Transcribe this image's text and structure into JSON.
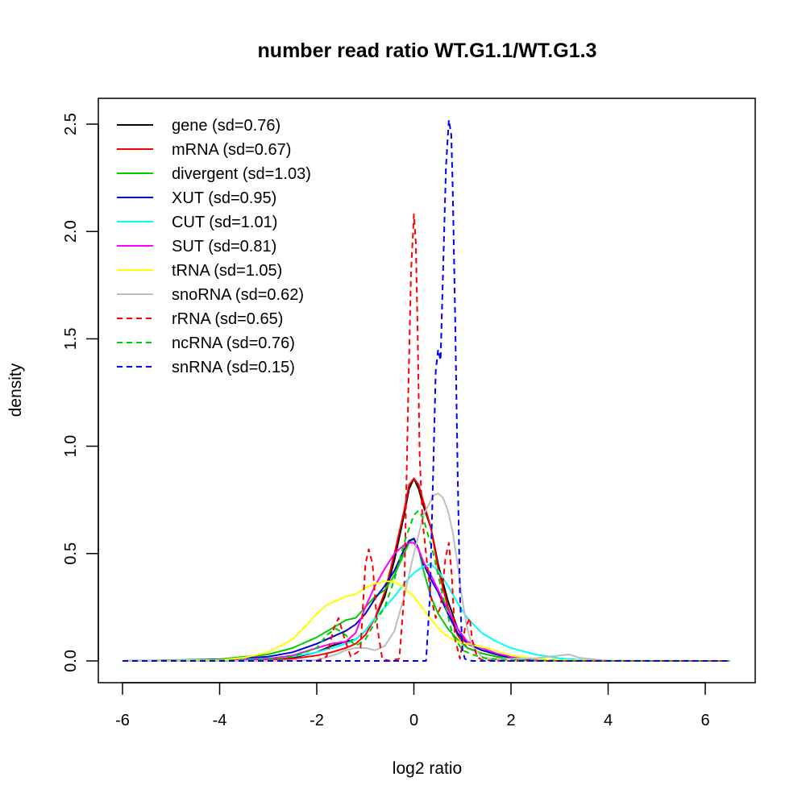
{
  "chart_data": {
    "type": "line",
    "title": "number read ratio WT.G1.1/WT.G1.3",
    "xlabel": "log2 ratio",
    "ylabel": "density",
    "xlim": [
      -6.5,
      7.0
    ],
    "ylim": [
      -0.1,
      2.6
    ],
    "xticks": [
      -6,
      -4,
      -2,
      0,
      2,
      4,
      6
    ],
    "xtick_labels": [
      "-6",
      "-4",
      "-2",
      "0",
      "2",
      "4",
      "6"
    ],
    "yticks": [
      0.0,
      0.5,
      1.0,
      1.5,
      2.0,
      2.5
    ],
    "ytick_labels": [
      "0.0",
      "0.5",
      "1.0",
      "1.5",
      "2.0",
      "2.5"
    ],
    "grid": false,
    "legend_position": "top-left",
    "series": [
      {
        "name": "gene (sd=0.76)",
        "color": "#000000",
        "dash": false,
        "x": [
          -6,
          -4,
          -3,
          -2.5,
          -2,
          -1.7,
          -1.4,
          -1.2,
          -1.0,
          -0.8,
          -0.6,
          -0.4,
          -0.2,
          -0.1,
          0,
          0.1,
          0.2,
          0.35,
          0.5,
          0.7,
          0.9,
          1.1,
          1.4,
          1.7,
          2,
          2.5,
          3,
          4,
          6.5
        ],
        "y": [
          0,
          0.002,
          0.005,
          0.015,
          0.04,
          0.07,
          0.09,
          0.1,
          0.14,
          0.2,
          0.3,
          0.47,
          0.68,
          0.8,
          0.85,
          0.8,
          0.72,
          0.62,
          0.45,
          0.28,
          0.15,
          0.08,
          0.05,
          0.03,
          0.015,
          0.006,
          0.002,
          0,
          0
        ]
      },
      {
        "name": "mRNA (sd=0.67)",
        "color": "#ff0000",
        "dash": false,
        "x": [
          -6,
          -4,
          -3,
          -2.5,
          -2,
          -1.7,
          -1.4,
          -1.2,
          -1.0,
          -0.8,
          -0.6,
          -0.4,
          -0.2,
          -0.1,
          0,
          0.1,
          0.2,
          0.35,
          0.5,
          0.7,
          0.9,
          1.1,
          1.4,
          1.7,
          2,
          2.5,
          3,
          4,
          6.5
        ],
        "y": [
          0,
          0.001,
          0.004,
          0.01,
          0.025,
          0.04,
          0.06,
          0.08,
          0.12,
          0.2,
          0.32,
          0.5,
          0.7,
          0.82,
          0.85,
          0.82,
          0.74,
          0.62,
          0.43,
          0.25,
          0.12,
          0.06,
          0.035,
          0.02,
          0.01,
          0.004,
          0.001,
          0,
          0
        ]
      },
      {
        "name": "divergent (sd=1.03)",
        "color": "#00cc00",
        "dash": false,
        "x": [
          -6,
          -4,
          -3,
          -2.5,
          -2,
          -1.7,
          -1.4,
          -1.2,
          -1.0,
          -0.8,
          -0.6,
          -0.4,
          -0.2,
          -0.1,
          0,
          0.1,
          0.2,
          0.35,
          0.5,
          0.7,
          0.9,
          1.1,
          1.4,
          1.7,
          2,
          2.5,
          3,
          4,
          6.5
        ],
        "y": [
          0,
          0.008,
          0.03,
          0.06,
          0.11,
          0.15,
          0.19,
          0.2,
          0.25,
          0.3,
          0.33,
          0.4,
          0.5,
          0.55,
          0.57,
          0.52,
          0.42,
          0.3,
          0.22,
          0.15,
          0.1,
          0.06,
          0.035,
          0.02,
          0.01,
          0.004,
          0.002,
          0,
          0
        ]
      },
      {
        "name": "XUT (sd=0.95)",
        "color": "#0000cc",
        "dash": false,
        "x": [
          -6,
          -4,
          -3,
          -2.5,
          -2,
          -1.7,
          -1.4,
          -1.2,
          -1.0,
          -0.8,
          -0.6,
          -0.4,
          -0.2,
          -0.1,
          0,
          0.1,
          0.2,
          0.35,
          0.5,
          0.7,
          0.9,
          1.1,
          1.4,
          1.7,
          2,
          2.5,
          3,
          4,
          6.5
        ],
        "y": [
          0,
          0.006,
          0.02,
          0.04,
          0.08,
          0.11,
          0.14,
          0.17,
          0.22,
          0.29,
          0.35,
          0.42,
          0.52,
          0.56,
          0.57,
          0.52,
          0.45,
          0.38,
          0.32,
          0.22,
          0.13,
          0.08,
          0.05,
          0.03,
          0.015,
          0.006,
          0.002,
          0,
          0
        ]
      },
      {
        "name": "CUT (sd=1.01)",
        "color": "#00ffff",
        "dash": false,
        "x": [
          -6,
          -4,
          -3,
          -2.5,
          -2,
          -1.7,
          -1.4,
          -1.2,
          -1.0,
          -0.8,
          -0.6,
          -0.4,
          -0.2,
          0,
          0.2,
          0.35,
          0.5,
          0.7,
          0.9,
          1.1,
          1.4,
          1.7,
          2,
          2.5,
          3,
          3.5,
          4,
          6.5
        ],
        "y": [
          0,
          0.004,
          0.012,
          0.02,
          0.04,
          0.06,
          0.08,
          0.1,
          0.14,
          0.2,
          0.25,
          0.3,
          0.36,
          0.41,
          0.44,
          0.45,
          0.42,
          0.35,
          0.27,
          0.2,
          0.13,
          0.09,
          0.06,
          0.03,
          0.012,
          0.004,
          0.001,
          0
        ]
      },
      {
        "name": "SUT (sd=0.81)",
        "color": "#ff00ff",
        "dash": false,
        "x": [
          -6,
          -4,
          -3,
          -2.5,
          -2,
          -1.7,
          -1.4,
          -1.2,
          -1.0,
          -0.8,
          -0.6,
          -0.4,
          -0.2,
          -0.1,
          0,
          0.1,
          0.2,
          0.35,
          0.5,
          0.7,
          0.9,
          1.1,
          1.4,
          1.7,
          2,
          2.5,
          3,
          4,
          6.5
        ],
        "y": [
          0,
          0.003,
          0.01,
          0.025,
          0.06,
          0.08,
          0.09,
          0.13,
          0.25,
          0.35,
          0.43,
          0.5,
          0.54,
          0.55,
          0.55,
          0.52,
          0.46,
          0.4,
          0.33,
          0.24,
          0.15,
          0.09,
          0.06,
          0.035,
          0.02,
          0.008,
          0.003,
          0,
          0
        ]
      },
      {
        "name": "tRNA (sd=1.05)",
        "color": "#ffff00",
        "dash": false,
        "x": [
          -6,
          -4,
          -3.5,
          -3,
          -2.5,
          -2.2,
          -2,
          -1.8,
          -1.6,
          -1.4,
          -1.2,
          -1.0,
          -0.8,
          -0.6,
          -0.4,
          -0.2,
          0,
          0.2,
          0.4,
          0.6,
          0.8,
          1.0,
          1.2,
          1.5,
          1.8,
          2,
          2.5,
          3,
          4,
          6.5
        ],
        "y": [
          0,
          0.004,
          0.015,
          0.04,
          0.1,
          0.17,
          0.22,
          0.26,
          0.28,
          0.3,
          0.31,
          0.34,
          0.36,
          0.37,
          0.37,
          0.34,
          0.3,
          0.24,
          0.18,
          0.13,
          0.1,
          0.085,
          0.075,
          0.06,
          0.04,
          0.025,
          0.01,
          0.004,
          0.001,
          0
        ]
      },
      {
        "name": "snoRNA (sd=0.62)",
        "color": "#bebebe",
        "dash": false,
        "x": [
          -6,
          -3,
          -2,
          -1.6,
          -1.4,
          -1.2,
          -1.0,
          -0.8,
          -0.6,
          -0.4,
          -0.2,
          0,
          0.2,
          0.4,
          0.5,
          0.6,
          0.7,
          0.8,
          0.9,
          1.0,
          1.1,
          1.2,
          1.4,
          1.6,
          2,
          2.5,
          3,
          3.2,
          3.4,
          4,
          6.5
        ],
        "y": [
          0,
          0,
          0.005,
          0.03,
          0.05,
          0.06,
          0.06,
          0.05,
          0.07,
          0.14,
          0.3,
          0.5,
          0.68,
          0.77,
          0.78,
          0.76,
          0.7,
          0.6,
          0.45,
          0.28,
          0.15,
          0.07,
          0.02,
          0.01,
          0.01,
          0.012,
          0.025,
          0.03,
          0.015,
          0,
          0
        ]
      },
      {
        "name": "rRNA (sd=0.65)",
        "color": "#ff0000",
        "dash": true,
        "x": [
          -6,
          -2,
          -1.8,
          -1.65,
          -1.55,
          -1.45,
          -1.3,
          -1.1,
          -1.0,
          -0.93,
          -0.85,
          -0.75,
          -0.65,
          -0.5,
          -0.3,
          -0.2,
          -0.12,
          -0.06,
          0,
          0.04,
          0.08,
          0.12,
          0.18,
          0.25,
          0.35,
          0.45,
          0.55,
          0.65,
          0.72,
          0.78,
          0.85,
          0.95,
          1.05,
          1.15,
          1.2,
          1.3,
          1.4,
          1.6,
          2,
          6.5
        ],
        "y": [
          0,
          0,
          0.02,
          0.15,
          0.2,
          0.12,
          0.02,
          0.05,
          0.45,
          0.52,
          0.45,
          0.15,
          0.01,
          0,
          0.01,
          0.3,
          1.2,
          1.8,
          2.08,
          1.95,
          1.5,
          0.95,
          0.65,
          0.5,
          0.3,
          0.2,
          0.25,
          0.48,
          0.55,
          0.4,
          0.1,
          0.01,
          0.15,
          0.2,
          0.1,
          0.02,
          0.005,
          0.002,
          0,
          0
        ]
      },
      {
        "name": "ncRNA (sd=0.76)",
        "color": "#00cc00",
        "dash": true,
        "x": [
          -6,
          -4,
          -3,
          -2.5,
          -2,
          -1.8,
          -1.6,
          -1.4,
          -1.2,
          -1.0,
          -0.8,
          -0.6,
          -0.4,
          -0.2,
          0,
          0.1,
          0.2,
          0.4,
          0.6,
          0.8,
          1.0,
          1.2,
          1.5,
          2,
          3,
          6.5
        ],
        "y": [
          0,
          0.002,
          0.008,
          0.02,
          0.06,
          0.12,
          0.15,
          0.12,
          0.07,
          0.1,
          0.18,
          0.25,
          0.38,
          0.55,
          0.68,
          0.7,
          0.66,
          0.5,
          0.3,
          0.12,
          0.05,
          0.03,
          0.01,
          0.004,
          0.001,
          0
        ]
      },
      {
        "name": "snRNA (sd=0.15)",
        "color": "#0000ff",
        "dash": true,
        "x": [
          -6,
          0.25,
          0.33,
          0.4,
          0.45,
          0.5,
          0.55,
          0.6,
          0.66,
          0.72,
          0.77,
          0.8,
          0.85,
          0.9,
          0.95,
          1.0,
          1.05,
          1.1,
          1.2,
          6.5
        ],
        "y": [
          0,
          0,
          0.3,
          0.9,
          1.35,
          1.45,
          1.4,
          1.8,
          2.3,
          2.52,
          2.45,
          2.2,
          1.6,
          0.9,
          0.3,
          0.05,
          0.01,
          0.005,
          0,
          0
        ]
      }
    ]
  }
}
